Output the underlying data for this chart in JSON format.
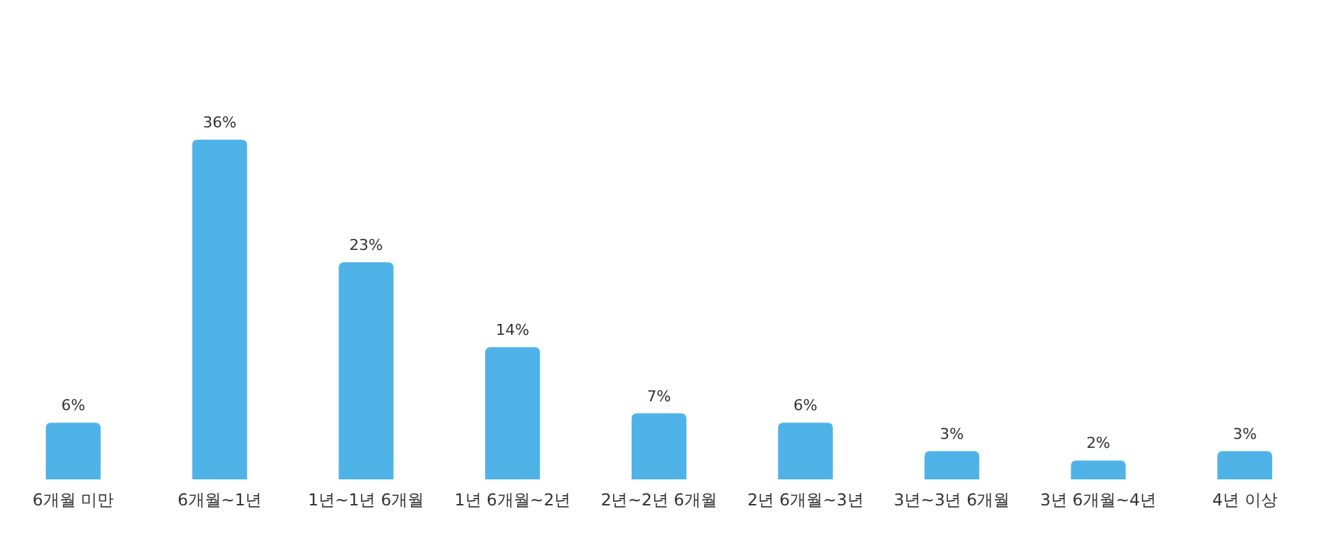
{
  "chart_data": {
    "type": "bar",
    "categories": [
      "6개월 미만",
      "6개월~1년",
      "1년~1년 6개월",
      "1년 6개월~2년",
      "2년~2년 6개월",
      "2년 6개월~3년",
      "3년~3년 6개월",
      "3년 6개월~4년",
      "4년 이상"
    ],
    "values": [
      6,
      36,
      23,
      14,
      7,
      6,
      3,
      2,
      3
    ],
    "value_labels": [
      "6%",
      "36%",
      "23%",
      "14%",
      "7%",
      "6%",
      "3%",
      "2%",
      "3%"
    ],
    "color": "#4fb3e8"
  }
}
